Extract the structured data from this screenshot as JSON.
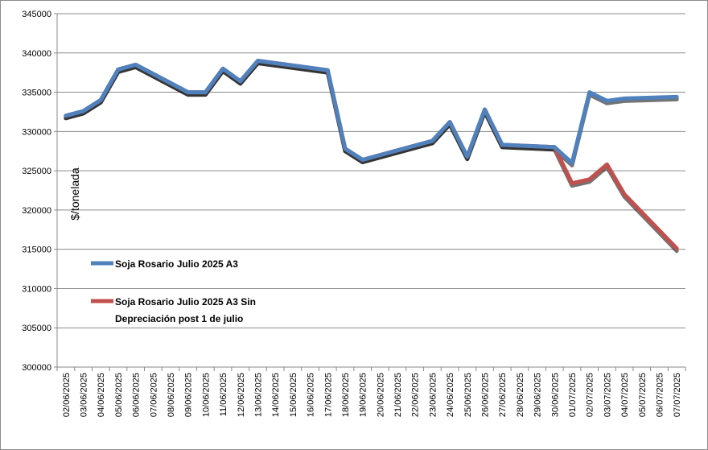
{
  "chart_data": {
    "type": "line",
    "ylabel": "$/tonelada",
    "ylim": [
      300000,
      345000
    ],
    "ytick_step": 5000,
    "grid": true,
    "legend_position": "lower-left",
    "categories": [
      "02/06/2025",
      "03/06/2025",
      "04/06/2025",
      "05/06/2025",
      "06/06/2025",
      "07/06/2025",
      "08/06/2025",
      "09/06/2025",
      "10/06/2025",
      "11/06/2025",
      "12/06/2025",
      "13/06/2025",
      "14/06/2025",
      "15/06/2025",
      "16/06/2025",
      "17/06/2025",
      "18/06/2025",
      "19/06/2025",
      "20/06/2025",
      "21/06/2025",
      "22/06/2025",
      "23/06/2025",
      "24/06/2025",
      "25/06/2025",
      "26/06/2025",
      "27/06/2025",
      "28/06/2025",
      "29/06/2025",
      "30/06/2025",
      "01/07/2025",
      "02/07/2025",
      "03/07/2025",
      "04/07/2025",
      "05/07/2025",
      "06/07/2025",
      "07/07/2025"
    ],
    "series": [
      {
        "name": "Soja Rosario Julio 2025 A3",
        "color": "#4f81bd",
        "values": [
          332000,
          332600,
          334000,
          337900,
          338500,
          null,
          null,
          335000,
          335000,
          338000,
          336400,
          339000,
          null,
          null,
          null,
          337800,
          327800,
          326400,
          null,
          null,
          null,
          328800,
          331200,
          326800,
          332800,
          328300,
          null,
          null,
          328000,
          326000,
          335000,
          333900,
          334200,
          null,
          null,
          334400
        ]
      },
      {
        "name": "Soja Rosario Julio 2025 A3 Sin Depreciación post 1 de julio",
        "color": "#c0504d",
        "values": [
          332000,
          332600,
          334000,
          337900,
          338500,
          null,
          null,
          335000,
          335000,
          338000,
          336400,
          339000,
          null,
          null,
          null,
          337800,
          327800,
          326400,
          null,
          null,
          null,
          328800,
          331200,
          326800,
          332800,
          328300,
          null,
          null,
          328000,
          323400,
          323900,
          325800,
          322000,
          null,
          null,
          315100
        ]
      }
    ]
  }
}
